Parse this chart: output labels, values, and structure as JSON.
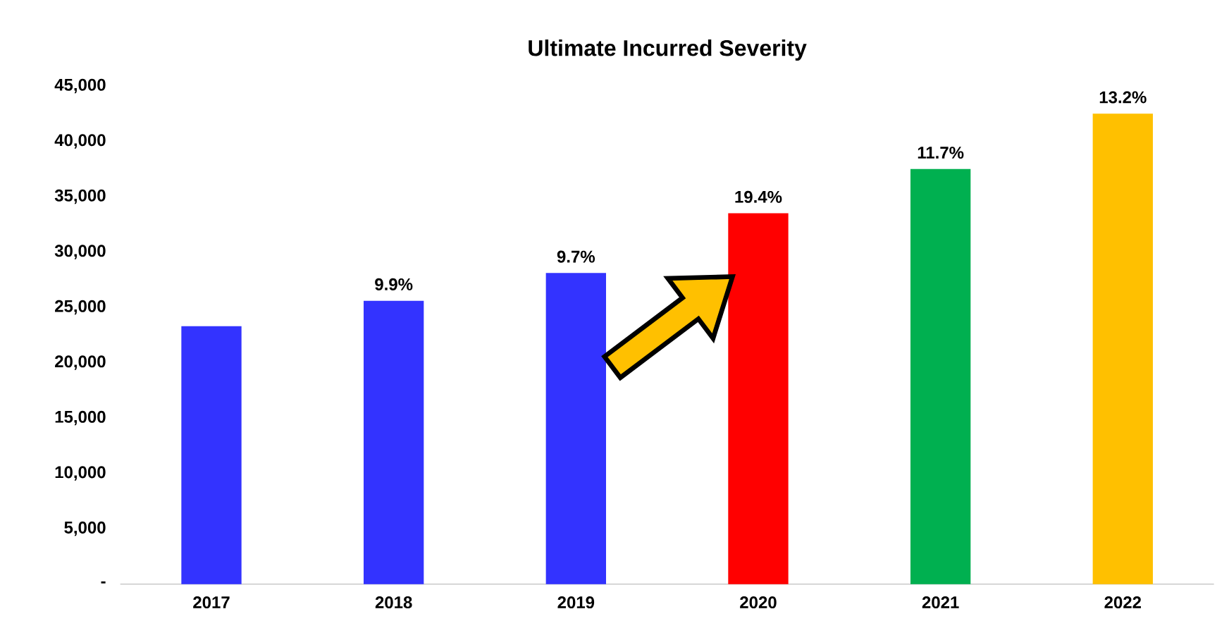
{
  "chart_data": {
    "type": "bar",
    "title": "Ultimate Incurred Severity",
    "categories": [
      "2017",
      "2018",
      "2019",
      "2020",
      "2021",
      "2022"
    ],
    "values": [
      23300,
      25600,
      28100,
      33500,
      37500,
      42500
    ],
    "colors": [
      "#3333ff",
      "#3333ff",
      "#3333ff",
      "#ff0000",
      "#00b050",
      "#ffc000"
    ],
    "annotations": [
      {
        "text": "9.9%",
        "x": "2018",
        "y": 25600
      },
      {
        "text": "9.7%",
        "x": "2019",
        "y": 28100
      },
      {
        "text": "19.4%",
        "x": "2020",
        "y": 33500
      },
      {
        "text": "11.7%",
        "x": "2021",
        "y": 37500
      },
      {
        "text": "13.2%",
        "x": "2022",
        "y": 42500
      }
    ],
    "ylim": [
      0,
      45000
    ],
    "yticks": [
      {
        "value": 0,
        "label": "-"
      },
      {
        "value": 5000,
        "label": "5,000"
      },
      {
        "value": 10000,
        "label": "10,000"
      },
      {
        "value": 15000,
        "label": "15,000"
      },
      {
        "value": 20000,
        "label": "20,000"
      },
      {
        "value": 25000,
        "label": "25,000"
      },
      {
        "value": 30000,
        "label": "30,000"
      },
      {
        "value": 35000,
        "label": "35,000"
      },
      {
        "value": 40000,
        "label": "40,000"
      },
      {
        "value": 45000,
        "label": "45,000"
      }
    ],
    "grid": false
  }
}
